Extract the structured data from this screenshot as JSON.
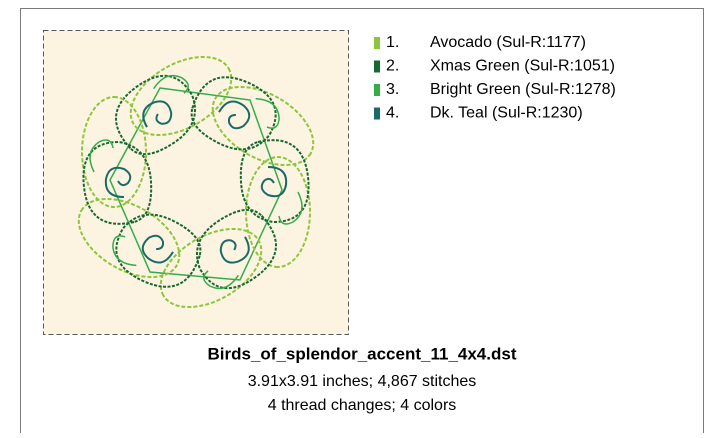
{
  "design": {
    "threads": [
      {
        "number": "1.",
        "name": "Avocado (Sul-R:1177)",
        "color": "#8cc63e"
      },
      {
        "number": "2.",
        "name": "Xmas Green (Sul-R:1051)",
        "color": "#17692f"
      },
      {
        "number": "3.",
        "name": "Bright Green (Sul-R:1278)",
        "color": "#35ac4a"
      },
      {
        "number": "4.",
        "name": "Dk. Teal (Sul-R:1230)",
        "color": "#1b6a68"
      }
    ],
    "filename": "Birds_of_splendor_accent_11_4x4.dst",
    "details": [
      "3.91x3.91 inches; 4,867 stitches",
      "4 thread changes; 4 colors"
    ]
  }
}
